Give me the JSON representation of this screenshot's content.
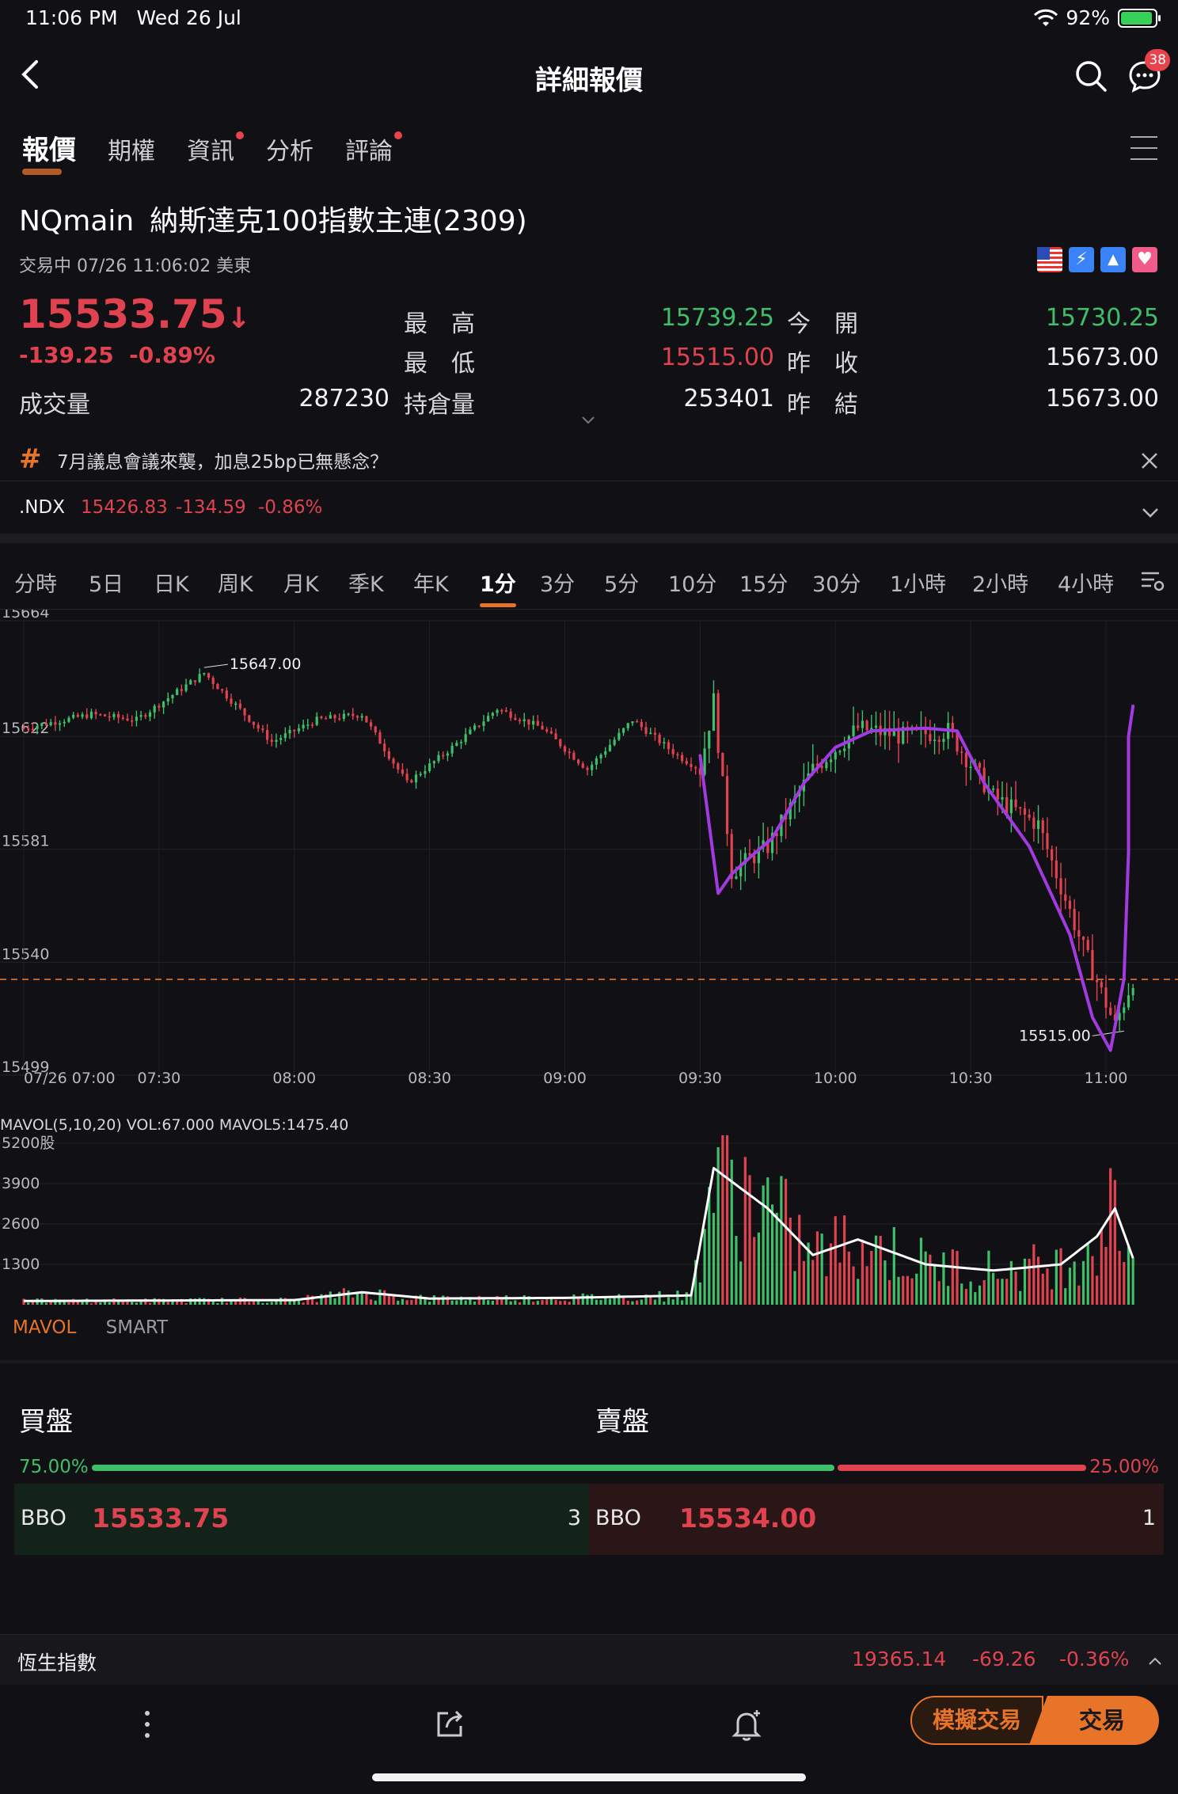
{
  "status": {
    "time": "11:06 PM",
    "date": "Wed 26 Jul",
    "battery": "92%",
    "battery_level": 0.92
  },
  "nav": {
    "title": "詳細報價",
    "chat_badge": "38"
  },
  "top_tabs": [
    {
      "label": "報價",
      "active": true,
      "dot": false
    },
    {
      "label": "期權",
      "active": false,
      "dot": false
    },
    {
      "label": "資訊",
      "active": false,
      "dot": true
    },
    {
      "label": "分析",
      "active": false,
      "dot": false
    },
    {
      "label": "評論",
      "active": false,
      "dot": true
    }
  ],
  "instrument": {
    "code": "NQmain",
    "name": "納斯達克100指數主連(2309)",
    "trade_status": "交易中 07/26 11:06:02 美東"
  },
  "quote": {
    "price": "15533.75",
    "arrow": "↓",
    "change": "-139.25",
    "change_pct": "-0.89%",
    "volume_label": "成交量",
    "volume": "287230",
    "high_label": "最　高",
    "high": "15739.25",
    "low_label": "最　低",
    "low": "15515.00",
    "oi_label": "持倉量",
    "oi": "253401",
    "open_label": "今　開",
    "open": "15730.25",
    "prev_close_label": "昨　收",
    "prev_close": "15673.00",
    "prev_settle_label": "昨　結",
    "prev_settle": "15673.00"
  },
  "news": {
    "icon": "#",
    "text": "7月議息會議來襲，加息25bp已無懸念？"
  },
  "ndx": {
    "symbol": ".NDX",
    "price": "15426.83",
    "change": "-134.59",
    "pct": "-0.86%"
  },
  "period_tabs": [
    "分時",
    "5日",
    "日K",
    "周K",
    "月K",
    "季K",
    "年K",
    "1分",
    "3分",
    "5分",
    "10分",
    "15分",
    "30分",
    "1小時",
    "2小時",
    "4小時"
  ],
  "active_period": "1分",
  "chart_data": [
    {
      "type": "candlestick",
      "y_ticks": [
        "15664",
        "15622",
        "15581",
        "15540",
        "15499"
      ],
      "ylim": [
        15499,
        15664
      ],
      "x_ticks": [
        "07/26 07:00",
        "07:30",
        "08:00",
        "08:30",
        "09:00",
        "09:30",
        "10:00",
        "10:30",
        "11:00"
      ],
      "annotations": [
        {
          "label": "15647.00",
          "time": "07:40",
          "value": 15647.0
        },
        {
          "label": "15515.00",
          "time": "11:04",
          "value": 15515.0
        }
      ],
      "current_price_line": 15533.75,
      "hand_drawn_curve_color": "#a13be0",
      "approx_price_path": [
        {
          "time": "07:00",
          "value": 15625
        },
        {
          "time": "07:15",
          "value": 15630
        },
        {
          "time": "07:25",
          "value": 15628
        },
        {
          "time": "07:40",
          "value": 15645
        },
        {
          "time": "07:55",
          "value": 15620
        },
        {
          "time": "08:05",
          "value": 15628
        },
        {
          "time": "08:15",
          "value": 15630
        },
        {
          "time": "08:25",
          "value": 15605
        },
        {
          "time": "08:35",
          "value": 15618
        },
        {
          "time": "08:45",
          "value": 15632
        },
        {
          "time": "08:55",
          "value": 15625
        },
        {
          "time": "09:05",
          "value": 15610
        },
        {
          "time": "09:15",
          "value": 15628
        },
        {
          "time": "09:25",
          "value": 15615
        },
        {
          "time": "09:30",
          "value": 15610
        },
        {
          "time": "09:33",
          "value": 15635
        },
        {
          "time": "09:37",
          "value": 15573
        },
        {
          "time": "09:45",
          "value": 15582
        },
        {
          "time": "09:55",
          "value": 15610
        },
        {
          "time": "10:05",
          "value": 15625
        },
        {
          "time": "10:15",
          "value": 15622
        },
        {
          "time": "10:25",
          "value": 15624
        },
        {
          "time": "10:35",
          "value": 15600
        },
        {
          "time": "10:45",
          "value": 15590
        },
        {
          "time": "10:55",
          "value": 15545
        },
        {
          "time": "11:02",
          "value": 15517
        },
        {
          "time": "11:06",
          "value": 15534
        }
      ]
    },
    {
      "type": "bar",
      "header": "MAVOL(5,10,20)  VOL:67.000  MAVOL5:1475.40",
      "y_ticks": [
        "5200股",
        "3900",
        "2600",
        "1300"
      ],
      "ylim": [
        0,
        5200
      ],
      "approx_volume_path": [
        {
          "time": "07:00",
          "value": 120
        },
        {
          "time": "08:00",
          "value": 150
        },
        {
          "time": "08:15",
          "value": 400
        },
        {
          "time": "08:30",
          "value": 200
        },
        {
          "time": "09:00",
          "value": 220
        },
        {
          "time": "09:28",
          "value": 300
        },
        {
          "time": "09:33",
          "value": 4400
        },
        {
          "time": "09:45",
          "value": 3100
        },
        {
          "time": "09:55",
          "value": 1600
        },
        {
          "time": "10:05",
          "value": 2100
        },
        {
          "time": "10:20",
          "value": 1300
        },
        {
          "time": "10:35",
          "value": 1100
        },
        {
          "time": "10:50",
          "value": 1300
        },
        {
          "time": "10:58",
          "value": 2200
        },
        {
          "time": "11:02",
          "value": 3100
        },
        {
          "time": "11:06",
          "value": 1500
        }
      ],
      "line_color": "#ffffff"
    }
  ],
  "vol_tabs": [
    {
      "label": "MAVOL",
      "active": true
    },
    {
      "label": "SMART",
      "active": false
    }
  ],
  "orderbook": {
    "buy_title": "買盤",
    "sell_title": "賣盤",
    "buy_pct": "75.00%",
    "sell_pct": "25.00%",
    "buy_ratio": 0.75,
    "bid_label": "BBO",
    "bid_price": "15533.75",
    "bid_qty": "3",
    "ask_label": "BBO",
    "ask_price": "15534.00",
    "ask_qty": "1"
  },
  "hsi": {
    "name": "恆生指數",
    "price": "19365.14",
    "change": "-69.26",
    "pct": "-0.36%"
  },
  "toolbar": {
    "sim_trade": "模擬交易",
    "trade": "交易"
  },
  "colors": {
    "up": "#3fbf6a",
    "down": "#e0434f",
    "accent": "#e8742a"
  }
}
